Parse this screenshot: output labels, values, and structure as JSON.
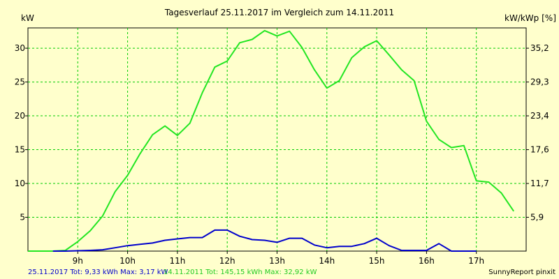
{
  "chart_data": {
    "type": "line",
    "title": "Tagesverlauf 25.11.2017 im Vergleich zum 14.11.2011",
    "ylabel": "kW",
    "ylabel_right": "kW/kWp [%]",
    "x_ticks": [
      "9h",
      "10h",
      "11h",
      "12h",
      "13h",
      "14h",
      "15h",
      "16h",
      "17h"
    ],
    "y_ticks": [
      "5",
      "10",
      "15",
      "20",
      "25",
      "30"
    ],
    "y_ticks_right": [
      "5,9",
      "11,7",
      "17,6",
      "23,4",
      "29,3",
      "35,2"
    ],
    "xlim": [
      8.0,
      18.0
    ],
    "ylim": [
      0,
      33
    ],
    "grid": true,
    "series": [
      {
        "name": "14.11.2011",
        "color": "#22e622",
        "x": [
          8.0,
          8.25,
          8.5,
          8.75,
          9.0,
          9.25,
          9.5,
          9.75,
          10.0,
          10.25,
          10.5,
          10.75,
          11.0,
          11.25,
          11.5,
          11.75,
          12.0,
          12.25,
          12.5,
          12.75,
          13.0,
          13.25,
          13.5,
          13.75,
          14.0,
          14.25,
          14.5,
          14.75,
          15.0,
          15.25,
          15.5,
          15.75,
          16.0,
          16.25,
          16.5,
          16.75,
          17.0,
          17.25,
          17.5,
          17.75
        ],
        "values": [
          0.0,
          0.0,
          0.0,
          0.1,
          1.4,
          3.0,
          5.2,
          8.8,
          11.2,
          14.4,
          17.2,
          18.5,
          17.1,
          18.9,
          23.4,
          27.2,
          28.1,
          30.8,
          31.3,
          32.6,
          31.8,
          32.5,
          30.1,
          26.8,
          24.1,
          25.2,
          28.6,
          30.2,
          31.1,
          29.0,
          26.8,
          25.2,
          19.2,
          16.5,
          15.3,
          15.6,
          10.4,
          10.2,
          8.6,
          5.9
        ]
      },
      {
        "name": "25.11.2017",
        "color": "#0000cc",
        "x": [
          8.5,
          8.75,
          9.0,
          9.25,
          9.5,
          9.75,
          10.0,
          10.25,
          10.5,
          10.75,
          11.0,
          11.25,
          11.5,
          11.75,
          12.0,
          12.25,
          12.5,
          12.75,
          13.0,
          13.25,
          13.5,
          13.75,
          14.0,
          14.25,
          14.5,
          14.75,
          15.0,
          15.25,
          15.5,
          15.75,
          16.0,
          16.25,
          16.5,
          16.75,
          17.0
        ],
        "values": [
          0.0,
          0.0,
          0.05,
          0.1,
          0.2,
          0.5,
          0.8,
          1.0,
          1.2,
          1.6,
          1.8,
          2.0,
          2.0,
          3.1,
          3.1,
          2.2,
          1.7,
          1.6,
          1.3,
          1.9,
          1.9,
          0.9,
          0.5,
          0.7,
          0.7,
          1.1,
          1.9,
          0.8,
          0.1,
          0.1,
          0.1,
          1.1,
          0.0,
          0.0,
          0.0
        ]
      }
    ]
  },
  "footer": {
    "series1_summary": "25.11.2017 Tot: 9,33 kWh Max: 3,17 kW",
    "series2_summary": "14.11.2011 Tot: 145,15 kWh Max: 32,92 kW",
    "brand": "SunnyReport pinxit"
  }
}
